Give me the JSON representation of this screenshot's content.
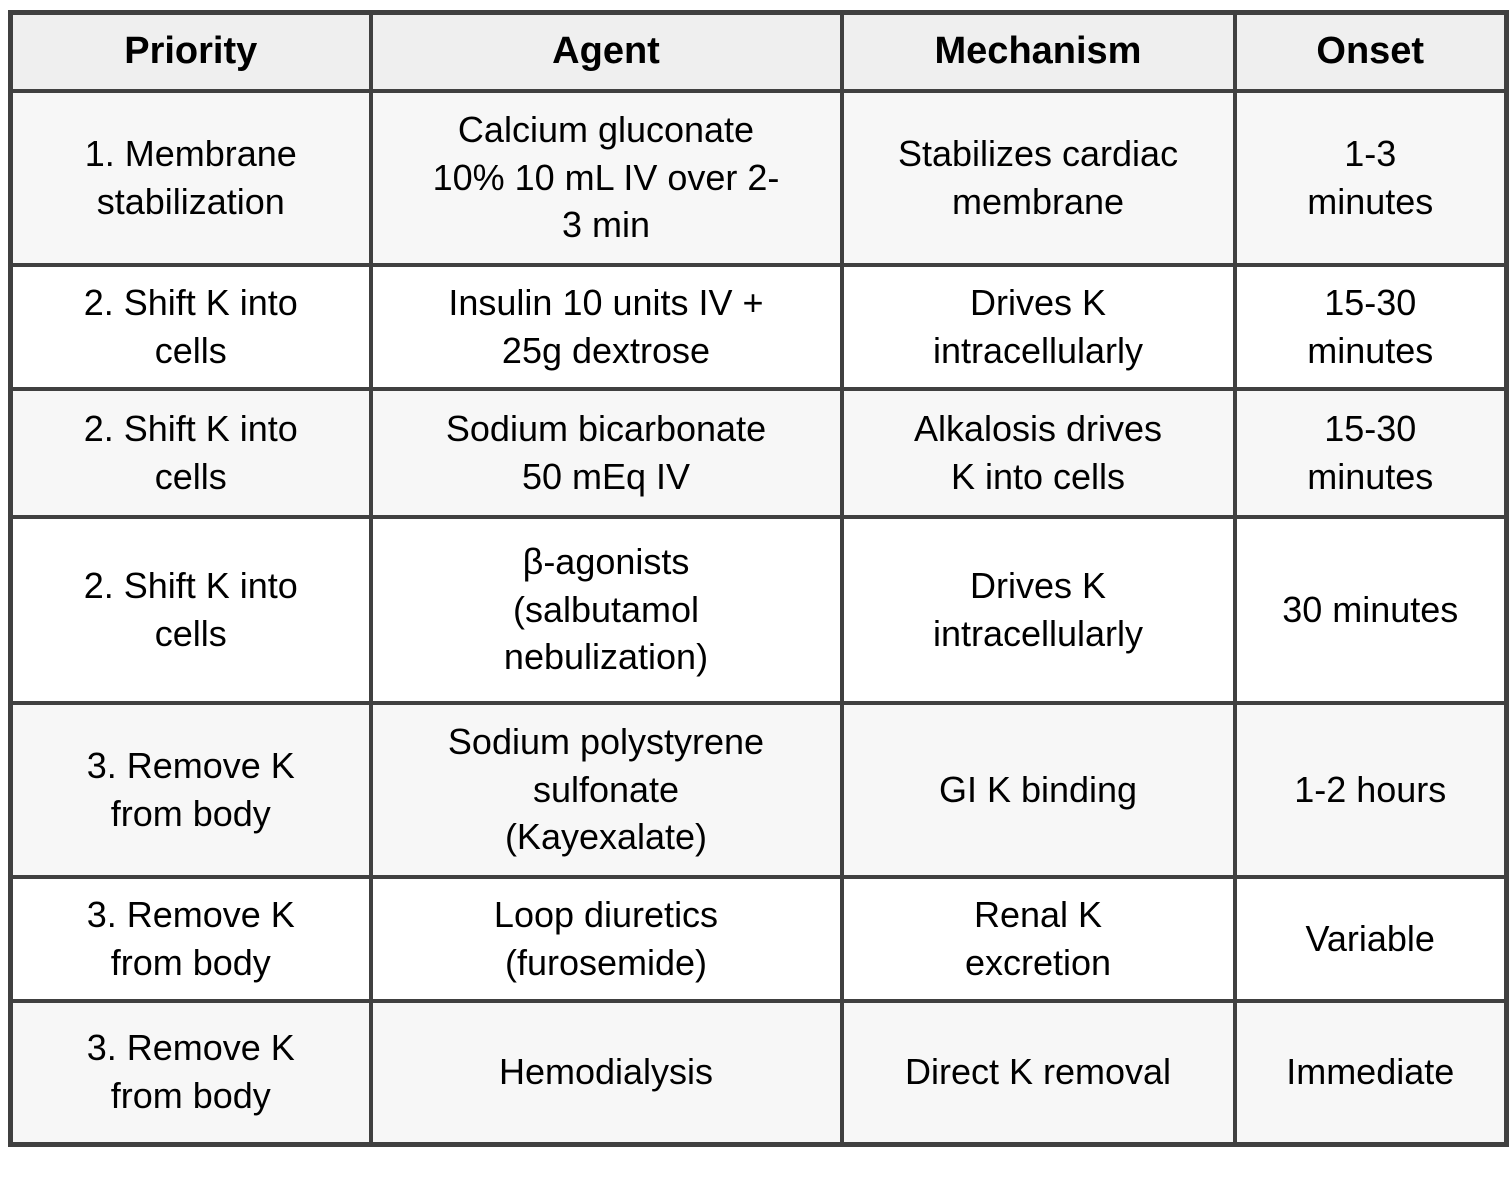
{
  "table": {
    "columns": [
      "Priority",
      "Agent",
      "Mechanism",
      "Onset"
    ],
    "rows": [
      {
        "priority": "1. Membrane stabilization",
        "agent": "Calcium gluconate 10% 10 mL IV over 2-3 min",
        "mechanism": "Stabilizes cardiac membrane",
        "onset": "1-3 minutes"
      },
      {
        "priority": "2. Shift K into cells",
        "agent": "Insulin 10 units IV + 25g dextrose",
        "mechanism": "Drives K intracellularly",
        "onset": "15-30 minutes"
      },
      {
        "priority": "2. Shift K into cells",
        "agent": "Sodium bicarbonate 50 mEq IV",
        "mechanism": "Alkalosis drives K into cells",
        "onset": "15-30 minutes"
      },
      {
        "priority": "2. Shift K into cells",
        "agent": "β-agonists (salbutamol nebulization)",
        "mechanism": "Drives K intracellularly",
        "onset": "30 minutes"
      },
      {
        "priority": "3. Remove K from body",
        "agent": "Sodium polystyrene sulfonate (Kayexalate)",
        "mechanism": "GI K binding",
        "onset": "1-2 hours"
      },
      {
        "priority": "3. Remove K from body",
        "agent": "Loop diuretics (furosemide)",
        "mechanism": "Renal K excretion",
        "onset": "Variable"
      },
      {
        "priority": "3. Remove K from body",
        "agent": "Hemodialysis",
        "mechanism": "Direct K removal",
        "onset": "Immediate"
      }
    ]
  },
  "colors": {
    "border": "#404040",
    "header_bg": "#efefef",
    "row_shaded_bg": "#f7f7f7",
    "row_plain_bg": "#ffffff",
    "text": "#000000"
  }
}
